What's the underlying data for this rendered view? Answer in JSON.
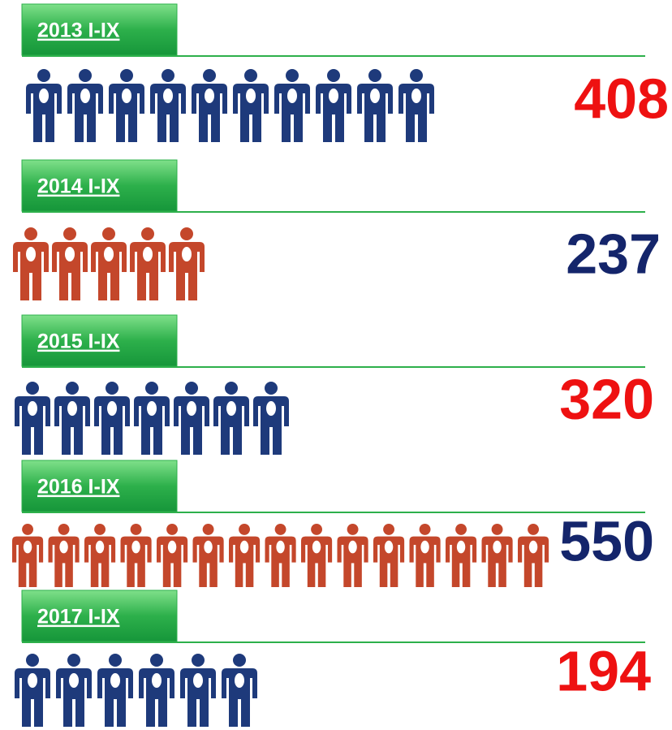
{
  "chart_data": {
    "type": "pictogram",
    "categories": [
      "2013  I-IX",
      "2014  I-IX",
      "2015  I-IX",
      "2016  I-IX",
      "2017  I-IX"
    ],
    "values": [
      408,
      237,
      320,
      550,
      194
    ],
    "icons": [
      10,
      5,
      7,
      15,
      6
    ],
    "icon_colors": [
      "#1e3a7b",
      "#c4472b",
      "#1e3a7b",
      "#c4472b",
      "#1e3a7b"
    ],
    "value_colors": [
      "#ee1111",
      "#14256b",
      "#ee1111",
      "#14256b",
      "#ee1111"
    ],
    "label_color": "#2db04b"
  }
}
